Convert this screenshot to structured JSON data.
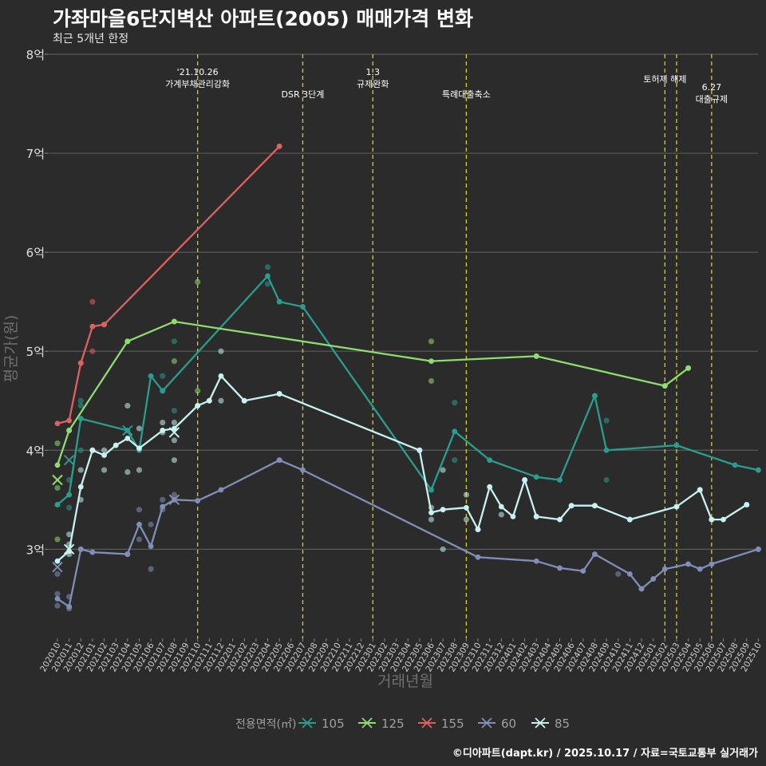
{
  "header": {
    "title": "가좌마을6단지벽산 아파트(2005) 매매가격 변화",
    "subtitle": "최근 5개년 한정"
  },
  "caption": "©디아파트(dapt.kr) / 2025.10.17 / 자료=국토교통부 실거래가",
  "chart_data": {
    "type": "line",
    "title": "가좌마을6단지벽산 아파트(2005) 매매가격 변화",
    "subtitle": "최근 5개년 한정",
    "xlabel": "거래년월",
    "ylabel": "평균가(원)",
    "ylim": [
      2.1,
      8.0
    ],
    "y_ticks": [
      {
        "value": 3,
        "label": "3억"
      },
      {
        "value": 4,
        "label": "4억"
      },
      {
        "value": 5,
        "label": "5억"
      },
      {
        "value": 6,
        "label": "6억"
      },
      {
        "value": 7,
        "label": "7억"
      },
      {
        "value": 8,
        "label": "8억"
      }
    ],
    "categories": [
      "202010",
      "202011",
      "202012",
      "202101",
      "202102",
      "202103",
      "202104",
      "202105",
      "202106",
      "202107",
      "202108",
      "202109",
      "202110",
      "202111",
      "202112",
      "202201",
      "202202",
      "202203",
      "202204",
      "202205",
      "202206",
      "202207",
      "202208",
      "202209",
      "202210",
      "202211",
      "202212",
      "202301",
      "202302",
      "202303",
      "202304",
      "202305",
      "202306",
      "202307",
      "202308",
      "202309",
      "202310",
      "202311",
      "202312",
      "202401",
      "202402",
      "202403",
      "202404",
      "202405",
      "202406",
      "202407",
      "202408",
      "202409",
      "202410",
      "202411",
      "202412",
      "202501",
      "202502",
      "202503",
      "202504",
      "202505",
      "202506",
      "202507",
      "202508",
      "202509",
      "202510"
    ],
    "legend_title": "전용면적(㎡)",
    "legend_position": "bottom",
    "series": [
      {
        "name": "105",
        "color": "#2a9d8f",
        "points": [
          [
            "202010",
            3.45
          ],
          [
            "202011",
            3.55
          ],
          [
            "202012",
            4.32
          ],
          [
            "202104",
            4.2
          ],
          [
            "202105",
            4.0
          ],
          [
            "202106",
            4.75
          ],
          [
            "202107",
            4.6
          ],
          [
            "202204",
            5.76
          ],
          [
            "202205",
            5.5
          ],
          [
            "202207",
            5.45
          ],
          [
            "202306",
            3.6
          ],
          [
            "202308",
            4.19
          ],
          [
            "202311",
            3.9
          ],
          [
            "202403",
            3.73
          ],
          [
            "202405",
            3.7
          ],
          [
            "202408",
            4.55
          ],
          [
            "202409",
            4.0
          ],
          [
            "202503",
            4.05
          ],
          [
            "202508",
            3.85
          ],
          [
            "202510",
            3.8
          ]
        ]
      },
      {
        "name": "125",
        "color": "#8fdc70",
        "points": [
          [
            "202010",
            3.85
          ],
          [
            "202011",
            4.2
          ],
          [
            "202104",
            5.1
          ],
          [
            "202108",
            5.3
          ],
          [
            "202306",
            4.9
          ],
          [
            "202403",
            4.95
          ],
          [
            "202502",
            4.65
          ],
          [
            "202504",
            4.83
          ]
        ]
      },
      {
        "name": "155",
        "color": "#e06060",
        "points": [
          [
            "202010",
            4.27
          ],
          [
            "202011",
            4.3
          ],
          [
            "202012",
            4.88
          ],
          [
            "202101",
            5.25
          ],
          [
            "202102",
            5.27
          ],
          [
            "202205",
            7.07
          ]
        ]
      },
      {
        "name": "60",
        "color": "#7f8fb8",
        "points": [
          [
            "202010",
            2.5
          ],
          [
            "202011",
            2.42
          ],
          [
            "202012",
            3.0
          ],
          [
            "202101",
            2.97
          ],
          [
            "202104",
            2.95
          ],
          [
            "202105",
            3.25
          ],
          [
            "202106",
            3.03
          ],
          [
            "202107",
            3.43
          ],
          [
            "202108",
            3.5
          ],
          [
            "202110",
            3.49
          ],
          [
            "202112",
            3.6
          ],
          [
            "202205",
            3.9
          ],
          [
            "202207",
            3.8
          ],
          [
            "202310",
            2.92
          ],
          [
            "202403",
            2.88
          ],
          [
            "202405",
            2.81
          ],
          [
            "202407",
            2.78
          ],
          [
            "202408",
            2.95
          ],
          [
            "202411",
            2.75
          ],
          [
            "202412",
            2.6
          ],
          [
            "202501",
            2.7
          ],
          [
            "202502",
            2.8
          ],
          [
            "202504",
            2.85
          ],
          [
            "202505",
            2.8
          ],
          [
            "202506",
            2.85
          ],
          [
            "202510",
            3.0
          ]
        ]
      },
      {
        "name": "85",
        "color": "#c8f2f2",
        "points": [
          [
            "202010",
            2.88
          ],
          [
            "202011",
            2.98
          ],
          [
            "202012",
            3.63
          ],
          [
            "202101",
            4.0
          ],
          [
            "202102",
            3.95
          ],
          [
            "202103",
            4.05
          ],
          [
            "202104",
            4.12
          ],
          [
            "202105",
            4.02
          ],
          [
            "202107",
            4.2
          ],
          [
            "202108",
            4.22
          ],
          [
            "202110",
            4.45
          ],
          [
            "202111",
            4.5
          ],
          [
            "202112",
            4.75
          ],
          [
            "202202",
            4.5
          ],
          [
            "202205",
            4.57
          ],
          [
            "202305",
            4.0
          ],
          [
            "202306",
            3.37
          ],
          [
            "202307",
            3.4
          ],
          [
            "202309",
            3.42
          ],
          [
            "202310",
            3.2
          ],
          [
            "202311",
            3.63
          ],
          [
            "202312",
            3.43
          ],
          [
            "202401",
            3.33
          ],
          [
            "202402",
            3.7
          ],
          [
            "202403",
            3.33
          ],
          [
            "202405",
            3.3
          ],
          [
            "202406",
            3.44
          ],
          [
            "202408",
            3.44
          ],
          [
            "202411",
            3.3
          ],
          [
            "202503",
            3.43
          ],
          [
            "202505",
            3.6
          ],
          [
            "202506",
            3.3
          ],
          [
            "202507",
            3.3
          ],
          [
            "202509",
            3.45
          ]
        ]
      }
    ],
    "scatter_points": [
      {
        "series": "105",
        "x": "202010",
        "y": 3.45
      },
      {
        "series": "105",
        "x": "202011",
        "y": 3.7
      },
      {
        "series": "105",
        "x": "202011",
        "y": 3.42
      },
      {
        "series": "105",
        "x": "202012",
        "y": 4.5
      },
      {
        "series": "105",
        "x": "202012",
        "y": 4.45
      },
      {
        "series": "105",
        "x": "202012",
        "y": 4.0
      },
      {
        "series": "105",
        "x": "202107",
        "y": 4.75
      },
      {
        "series": "105",
        "x": "202107",
        "y": 4.6
      },
      {
        "series": "105",
        "x": "202108",
        "y": 5.1
      },
      {
        "series": "105",
        "x": "202108",
        "y": 4.4
      },
      {
        "series": "105",
        "x": "202204",
        "y": 5.85
      },
      {
        "series": "105",
        "x": "202204",
        "y": 5.68
      },
      {
        "series": "105",
        "x": "202306",
        "y": 3.6
      },
      {
        "series": "105",
        "x": "202308",
        "y": 4.48
      },
      {
        "series": "105",
        "x": "202308",
        "y": 3.9
      },
      {
        "series": "105",
        "x": "202408",
        "y": 4.55
      },
      {
        "series": "105",
        "x": "202409",
        "y": 4.3
      },
      {
        "series": "105",
        "x": "202409",
        "y": 3.7
      },
      {
        "series": "125",
        "x": "202010",
        "y": 4.07
      },
      {
        "series": "125",
        "x": "202010",
        "y": 3.62
      },
      {
        "series": "125",
        "x": "202011",
        "y": 4.2
      },
      {
        "series": "125",
        "x": "202104",
        "y": 5.1
      },
      {
        "series": "125",
        "x": "202108",
        "y": 5.3
      },
      {
        "series": "125",
        "x": "202110",
        "y": 5.7
      },
      {
        "series": "125",
        "x": "202110",
        "y": 4.6
      },
      {
        "series": "125",
        "x": "202108",
        "y": 4.9
      },
      {
        "series": "125",
        "x": "202306",
        "y": 5.1
      },
      {
        "series": "125",
        "x": "202306",
        "y": 4.7
      },
      {
        "series": "125",
        "x": "202403",
        "y": 4.95
      },
      {
        "series": "125",
        "x": "202502",
        "y": 4.65
      },
      {
        "series": "125",
        "x": "202504",
        "y": 4.83
      },
      {
        "series": "125",
        "x": "202010",
        "y": 3.1
      },
      {
        "series": "155",
        "x": "202012",
        "y": 4.88
      },
      {
        "series": "155",
        "x": "202101",
        "y": 5.5
      },
      {
        "series": "155",
        "x": "202101",
        "y": 5.0
      },
      {
        "series": "155",
        "x": "202102",
        "y": 5.27
      },
      {
        "series": "155",
        "x": "202205",
        "y": 7.07
      },
      {
        "series": "60",
        "x": "202010",
        "y": 2.75
      },
      {
        "series": "60",
        "x": "202010",
        "y": 2.55
      },
      {
        "series": "60",
        "x": "202010",
        "y": 2.43
      },
      {
        "series": "60",
        "x": "202011",
        "y": 2.52
      },
      {
        "series": "60",
        "x": "202011",
        "y": 2.4
      },
      {
        "series": "60",
        "x": "202012",
        "y": 3.0
      },
      {
        "series": "60",
        "x": "202104",
        "y": 2.95
      },
      {
        "series": "60",
        "x": "202105",
        "y": 3.4
      },
      {
        "series": "60",
        "x": "202105",
        "y": 3.1
      },
      {
        "series": "60",
        "x": "202106",
        "y": 2.8
      },
      {
        "series": "60",
        "x": "202106",
        "y": 3.25
      },
      {
        "series": "60",
        "x": "202107",
        "y": 3.5
      },
      {
        "series": "60",
        "x": "202107",
        "y": 3.4
      },
      {
        "series": "60",
        "x": "202108",
        "y": 3.55
      },
      {
        "series": "60",
        "x": "202205",
        "y": 3.9
      },
      {
        "series": "60",
        "x": "202410",
        "y": 2.75
      },
      {
        "series": "60",
        "x": "202412",
        "y": 2.6
      },
      {
        "series": "60",
        "x": "202510",
        "y": 3.0
      },
      {
        "series": "85",
        "x": "202011",
        "y": 3.15
      },
      {
        "series": "85",
        "x": "202011",
        "y": 3.05
      },
      {
        "series": "85",
        "x": "202011",
        "y": 2.95
      },
      {
        "series": "85",
        "x": "202012",
        "y": 3.8
      },
      {
        "series": "85",
        "x": "202012",
        "y": 3.5
      },
      {
        "series": "85",
        "x": "202101",
        "y": 4.0
      },
      {
        "series": "85",
        "x": "202102",
        "y": 3.8
      },
      {
        "series": "85",
        "x": "202102",
        "y": 4.0
      },
      {
        "series": "85",
        "x": "202104",
        "y": 4.45
      },
      {
        "series": "85",
        "x": "202104",
        "y": 3.78
      },
      {
        "series": "85",
        "x": "202105",
        "y": 4.22
      },
      {
        "series": "85",
        "x": "202105",
        "y": 3.8
      },
      {
        "series": "85",
        "x": "202107",
        "y": 4.28
      },
      {
        "series": "85",
        "x": "202107",
        "y": 4.18
      },
      {
        "series": "85",
        "x": "202108",
        "y": 4.28
      },
      {
        "series": "85",
        "x": "202108",
        "y": 4.1
      },
      {
        "series": "85",
        "x": "202108",
        "y": 3.9
      },
      {
        "series": "85",
        "x": "202110",
        "y": 4.45
      },
      {
        "series": "85",
        "x": "202111",
        "y": 4.5
      },
      {
        "series": "85",
        "x": "202112",
        "y": 5.0
      },
      {
        "series": "85",
        "x": "202112",
        "y": 4.5
      },
      {
        "series": "85",
        "x": "202202",
        "y": 4.5
      },
      {
        "series": "85",
        "x": "202205",
        "y": 4.57
      },
      {
        "series": "85",
        "x": "202305",
        "y": 4.0
      },
      {
        "series": "85",
        "x": "202306",
        "y": 3.42
      },
      {
        "series": "85",
        "x": "202306",
        "y": 3.3
      },
      {
        "series": "85",
        "x": "202307",
        "y": 3.0
      },
      {
        "series": "85",
        "x": "202307",
        "y": 3.8
      },
      {
        "series": "85",
        "x": "202309",
        "y": 3.55
      },
      {
        "series": "85",
        "x": "202309",
        "y": 3.3
      },
      {
        "series": "85",
        "x": "202310",
        "y": 3.2
      },
      {
        "series": "85",
        "x": "202312",
        "y": 3.35
      },
      {
        "series": "85",
        "x": "202402",
        "y": 3.7
      },
      {
        "series": "85",
        "x": "202403",
        "y": 3.33
      },
      {
        "series": "85",
        "x": "202406",
        "y": 3.44
      },
      {
        "series": "85",
        "x": "202408",
        "y": 3.44
      },
      {
        "series": "85",
        "x": "202411",
        "y": 3.3
      },
      {
        "series": "85",
        "x": "202503",
        "y": 3.43
      },
      {
        "series": "85",
        "x": "202505",
        "y": 3.6
      },
      {
        "series": "85",
        "x": "202506",
        "y": 3.3
      },
      {
        "series": "85",
        "x": "202509",
        "y": 3.45
      }
    ],
    "cross_markers": [
      {
        "series": "105",
        "x": "202011",
        "y": 3.9
      },
      {
        "series": "105",
        "x": "202104",
        "y": 4.2
      },
      {
        "series": "125",
        "x": "202010",
        "y": 3.7
      },
      {
        "series": "60",
        "x": "202010",
        "y": 2.82
      },
      {
        "series": "60",
        "x": "202108",
        "y": 3.5
      },
      {
        "series": "85",
        "x": "202011",
        "y": 3.0
      },
      {
        "series": "85",
        "x": "202108",
        "y": 4.18
      }
    ],
    "annotations": [
      {
        "x": "202110",
        "text": "'21.10.26\n가계부채관리강화",
        "row": 1
      },
      {
        "x": "202207",
        "text": "DSR 3단계",
        "row": 2
      },
      {
        "x": "202301",
        "text": "1.3\n규제완화",
        "row": 1
      },
      {
        "x": "202309",
        "text": "특례대출축소",
        "row": 2
      },
      {
        "x": "202502",
        "text": "토허제 해제",
        "row": 1.5
      },
      {
        "x": "202503",
        "text": "",
        "row": 0
      },
      {
        "x": "202506",
        "text": "6.27\n대출규제",
        "row": 2.2
      }
    ],
    "grid": true
  }
}
